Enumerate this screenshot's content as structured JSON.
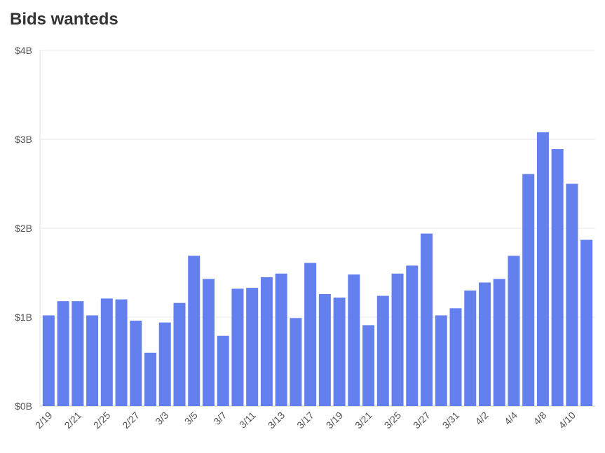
{
  "chart_data": {
    "type": "bar",
    "title": "Bids wanteds",
    "xlabel": "",
    "ylabel": "",
    "ylim": [
      0,
      4
    ],
    "y_ticks": [
      {
        "value": 0,
        "label": "$0B"
      },
      {
        "value": 1,
        "label": "$1B"
      },
      {
        "value": 2,
        "label": "$2B"
      },
      {
        "value": 3,
        "label": "$3B"
      },
      {
        "value": 4,
        "label": "$4B"
      }
    ],
    "grid": true,
    "bar_color": "#6380EE",
    "categories": [
      "2/19",
      "2/20",
      "2/21",
      "2/24",
      "2/25",
      "2/26",
      "2/27",
      "2/28",
      "3/3",
      "3/4",
      "3/5",
      "3/6",
      "3/7",
      "3/10",
      "3/11",
      "3/12",
      "3/13",
      "3/14",
      "3/17",
      "3/18",
      "3/19",
      "3/20",
      "3/21",
      "3/24",
      "3/25",
      "3/26",
      "3/27",
      "3/28",
      "3/31",
      "4/1",
      "4/2",
      "4/3",
      "4/4",
      "4/7",
      "4/8",
      "4/9",
      "4/10",
      "4/11"
    ],
    "x_tick_labels": [
      "2/19",
      "",
      "2/21",
      "",
      "2/25",
      "",
      "2/27",
      "",
      "3/3",
      "",
      "3/5",
      "",
      "3/7",
      "",
      "3/11",
      "",
      "3/13",
      "",
      "3/17",
      "",
      "3/19",
      "",
      "3/21",
      "",
      "3/25",
      "",
      "3/27",
      "",
      "3/31",
      "",
      "4/2",
      "",
      "4/4",
      "",
      "4/8",
      "",
      "4/10",
      ""
    ],
    "values": [
      1.02,
      1.18,
      1.18,
      1.02,
      1.21,
      1.2,
      0.96,
      0.6,
      0.94,
      1.16,
      1.69,
      1.43,
      0.79,
      1.32,
      1.33,
      1.45,
      1.49,
      0.99,
      1.61,
      1.26,
      1.22,
      1.48,
      0.91,
      1.24,
      1.49,
      1.58,
      1.94,
      1.02,
      1.1,
      1.3,
      1.39,
      1.43,
      1.69,
      2.61,
      3.08,
      2.89,
      2.5,
      1.87
    ]
  }
}
